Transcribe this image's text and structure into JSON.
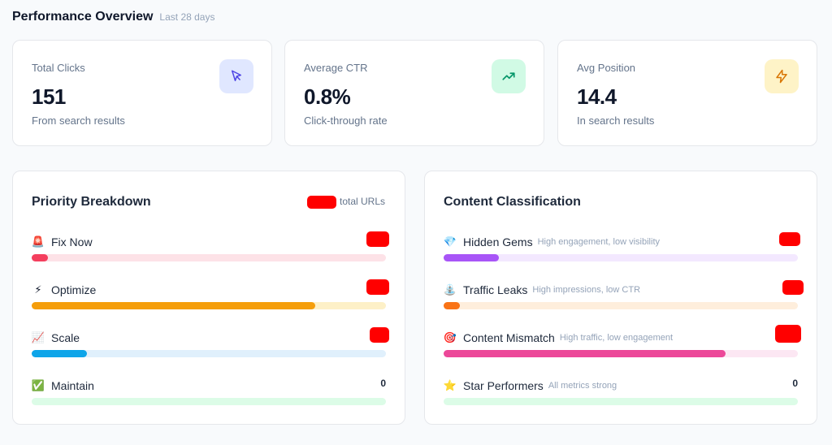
{
  "header": {
    "title": "Performance Overview",
    "period": "Last 28 days"
  },
  "kpis": [
    {
      "label": "Total Clicks",
      "value": "151",
      "desc": "From search results",
      "icon": "cursor-icon",
      "icon_bg": "#e0e7ff",
      "icon_color": "#4f46e5"
    },
    {
      "label": "Average CTR",
      "value": "0.8%",
      "desc": "Click-through rate",
      "icon": "trending-up-icon",
      "icon_bg": "#d1fae5",
      "icon_color": "#059669"
    },
    {
      "label": "Avg Position",
      "value": "14.4",
      "desc": "In search results",
      "icon": "lightning-icon",
      "icon_bg": "#fef3c7",
      "icon_color": "#d97706"
    }
  ],
  "priority": {
    "title": "Priority Breakdown",
    "total_label": "total URLs",
    "rows": [
      {
        "emoji": "🚨",
        "name": "Fix Now",
        "count": "",
        "fill": 0.045,
        "color": "#f43f5e",
        "track": "#fde2e7"
      },
      {
        "emoji": "⚡",
        "name": "Optimize",
        "count": "",
        "fill": 0.8,
        "color": "#f59e0b",
        "track": "#fdf0c7"
      },
      {
        "emoji": "📈",
        "name": "Scale",
        "count": "",
        "fill": 0.155,
        "color": "#0ea5e9",
        "track": "#e0f0fc"
      },
      {
        "emoji": "✅",
        "name": "Maintain",
        "count": "0",
        "fill": 0,
        "color": "#22c55e",
        "track": "#dcfce7"
      }
    ]
  },
  "classification": {
    "title": "Content Classification",
    "rows": [
      {
        "emoji": "💎",
        "name": "Hidden Gems",
        "hint": "High engagement, low visibility",
        "count": "",
        "fill": 0.155,
        "color": "#a855f7",
        "track": "#f3e8ff"
      },
      {
        "emoji": "⛲",
        "name": "Traffic Leaks",
        "hint": "High impressions, low CTR",
        "count": "",
        "fill": 0.045,
        "color": "#f97316",
        "track": "#feeedc"
      },
      {
        "emoji": "🎯",
        "name": "Content Mismatch",
        "hint": "High traffic, low engagement",
        "count": "",
        "fill": 0.795,
        "color": "#ec4899",
        "track": "#fce7f3"
      },
      {
        "emoji": "⭐",
        "name": "Star Performers",
        "hint": "All metrics strong",
        "count": "0",
        "fill": 0,
        "color": "#22c55e",
        "track": "#dcfce7"
      }
    ]
  }
}
